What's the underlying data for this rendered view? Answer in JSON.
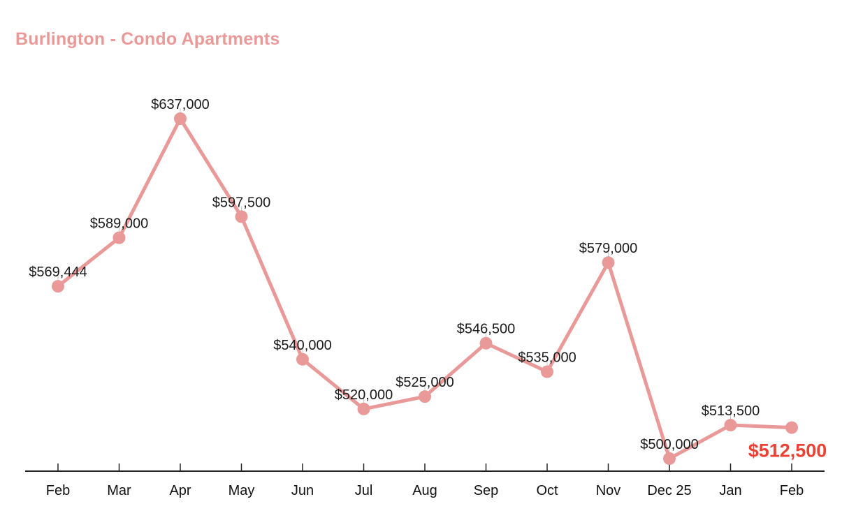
{
  "chart_data": {
    "type": "line",
    "title": "Burlington - Condo Apartments",
    "categories": [
      "Feb",
      "Mar",
      "Apr",
      "May",
      "Jun",
      "Jul",
      "Aug",
      "Sep",
      "Oct",
      "Nov",
      "Dec 25",
      "Jan",
      "Feb"
    ],
    "values": [
      569444,
      589000,
      637000,
      597500,
      540000,
      520000,
      525000,
      546500,
      535000,
      579000,
      500000,
      513500,
      512500
    ],
    "point_labels": [
      "$569,444",
      "$589,000",
      "$637,000",
      "$597,500",
      "$540,000",
      "$520,000",
      "$525,000",
      "$546,500",
      "$535,000",
      "$579,000",
      "$500,000",
      "$513,500",
      "$512,500"
    ],
    "highlighted_point_index": 12,
    "highlighted_point_label": "$512,500",
    "xlabel": "",
    "ylabel": "",
    "ylim": [
      500000,
      637000
    ],
    "grid": false,
    "legend": "none",
    "colors": {
      "series": "#ea9999",
      "title": "#ea9999",
      "annotation": "#1a1a1a",
      "highlight": "#ea4335",
      "axis_line": "#222222",
      "axis_text": "#111111",
      "stem": "#c9c9c9"
    }
  }
}
